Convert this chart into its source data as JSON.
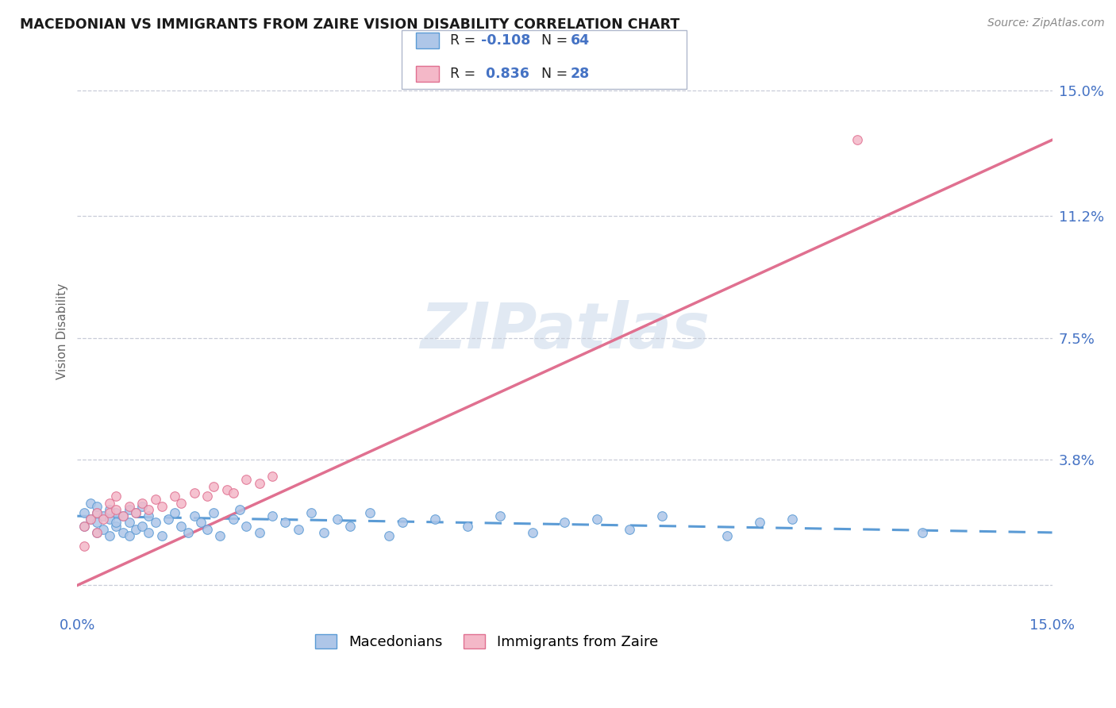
{
  "title": "MACEDONIAN VS IMMIGRANTS FROM ZAIRE VISION DISABILITY CORRELATION CHART",
  "source": "Source: ZipAtlas.com",
  "ylabel": "Vision Disability",
  "xlim": [
    0.0,
    0.15
  ],
  "ylim": [
    -0.008,
    0.162
  ],
  "ytick_vals": [
    0.0,
    0.038,
    0.075,
    0.112,
    0.15
  ],
  "ytick_labels": [
    "",
    "3.8%",
    "7.5%",
    "11.2%",
    "15.0%"
  ],
  "xtick_vals": [
    0.0,
    0.15
  ],
  "xtick_labels": [
    "0.0%",
    "15.0%"
  ],
  "color_mac_fill": "#aec6e8",
  "color_mac_edge": "#5b9bd5",
  "color_zaire_fill": "#f4b8c8",
  "color_zaire_edge": "#e07090",
  "color_mac_line": "#5b9bd5",
  "color_zaire_line": "#e07090",
  "color_grid": "#c8ccd8",
  "color_tick": "#4472c4",
  "watermark": "ZIPatlas",
  "mac_line_x": [
    0.0,
    0.15
  ],
  "mac_line_y": [
    0.021,
    0.016
  ],
  "zaire_line_x": [
    0.0,
    0.15
  ],
  "zaire_line_y": [
    0.0,
    0.135
  ],
  "mac_scatter_x": [
    0.001,
    0.001,
    0.002,
    0.002,
    0.003,
    0.003,
    0.003,
    0.003,
    0.004,
    0.004,
    0.005,
    0.005,
    0.005,
    0.006,
    0.006,
    0.006,
    0.007,
    0.007,
    0.008,
    0.008,
    0.008,
    0.009,
    0.009,
    0.01,
    0.01,
    0.011,
    0.011,
    0.012,
    0.013,
    0.014,
    0.015,
    0.016,
    0.017,
    0.018,
    0.019,
    0.02,
    0.021,
    0.022,
    0.024,
    0.025,
    0.026,
    0.028,
    0.03,
    0.032,
    0.034,
    0.036,
    0.038,
    0.04,
    0.042,
    0.045,
    0.048,
    0.05,
    0.055,
    0.06,
    0.065,
    0.07,
    0.075,
    0.08,
    0.085,
    0.09,
    0.1,
    0.105,
    0.11,
    0.13
  ],
  "mac_scatter_y": [
    0.022,
    0.018,
    0.025,
    0.02,
    0.019,
    0.022,
    0.016,
    0.024,
    0.017,
    0.021,
    0.015,
    0.02,
    0.023,
    0.018,
    0.022,
    0.019,
    0.016,
    0.021,
    0.015,
    0.019,
    0.023,
    0.017,
    0.022,
    0.018,
    0.024,
    0.016,
    0.021,
    0.019,
    0.015,
    0.02,
    0.022,
    0.018,
    0.016,
    0.021,
    0.019,
    0.017,
    0.022,
    0.015,
    0.02,
    0.023,
    0.018,
    0.016,
    0.021,
    0.019,
    0.017,
    0.022,
    0.016,
    0.02,
    0.018,
    0.022,
    0.015,
    0.019,
    0.02,
    0.018,
    0.021,
    0.016,
    0.019,
    0.02,
    0.017,
    0.021,
    0.015,
    0.019,
    0.02,
    0.016
  ],
  "zaire_scatter_x": [
    0.001,
    0.001,
    0.002,
    0.003,
    0.003,
    0.004,
    0.005,
    0.005,
    0.006,
    0.006,
    0.007,
    0.008,
    0.009,
    0.01,
    0.011,
    0.012,
    0.013,
    0.015,
    0.016,
    0.018,
    0.02,
    0.021,
    0.023,
    0.024,
    0.026,
    0.028,
    0.03,
    0.12
  ],
  "zaire_scatter_y": [
    0.012,
    0.018,
    0.02,
    0.016,
    0.022,
    0.02,
    0.022,
    0.025,
    0.023,
    0.027,
    0.021,
    0.024,
    0.022,
    0.025,
    0.023,
    0.026,
    0.024,
    0.027,
    0.025,
    0.028,
    0.027,
    0.03,
    0.029,
    0.028,
    0.032,
    0.031,
    0.033,
    0.135
  ]
}
